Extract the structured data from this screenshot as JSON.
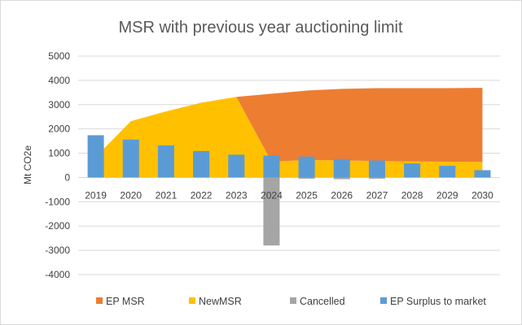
{
  "chart_data": {
    "type": "bar",
    "title": "MSR with previous year auctioning limit",
    "xlabel": "",
    "ylabel": "Mt CO2e",
    "ylim": [
      -4000,
      5000
    ],
    "yticks": [
      5000,
      4000,
      3000,
      2000,
      1000,
      0,
      -1000,
      -2000,
      -3000,
      -4000
    ],
    "categories": [
      "2019",
      "2020",
      "2021",
      "2022",
      "2023",
      "2024",
      "2025",
      "2026",
      "2027",
      "2028",
      "2029",
      "2030"
    ],
    "grid": true,
    "legend_position": "bottom",
    "series": [
      {
        "name": "EP MSR",
        "kind": "area",
        "color": "#ED7D31",
        "values": [
          null,
          null,
          null,
          null,
          3320,
          3450,
          3580,
          3650,
          3680,
          3680,
          3680,
          3690
        ]
      },
      {
        "name": "NewMSR",
        "kind": "area",
        "color": "#FFC000",
        "values": [
          850,
          2320,
          2720,
          3080,
          3320,
          650,
          720,
          700,
          680,
          660,
          650,
          640
        ]
      },
      {
        "name": "Cancelled",
        "kind": "bar",
        "color": "#A5A5A5",
        "values": [
          0,
          0,
          0,
          0,
          0,
          -2800,
          -50,
          -70,
          -50,
          0,
          0,
          0
        ]
      },
      {
        "name": "EP Surplus to market",
        "kind": "bar",
        "color": "#5B9BD5",
        "values": [
          1740,
          1560,
          1320,
          1090,
          940,
          900,
          860,
          760,
          700,
          580,
          480,
          300
        ]
      }
    ]
  }
}
